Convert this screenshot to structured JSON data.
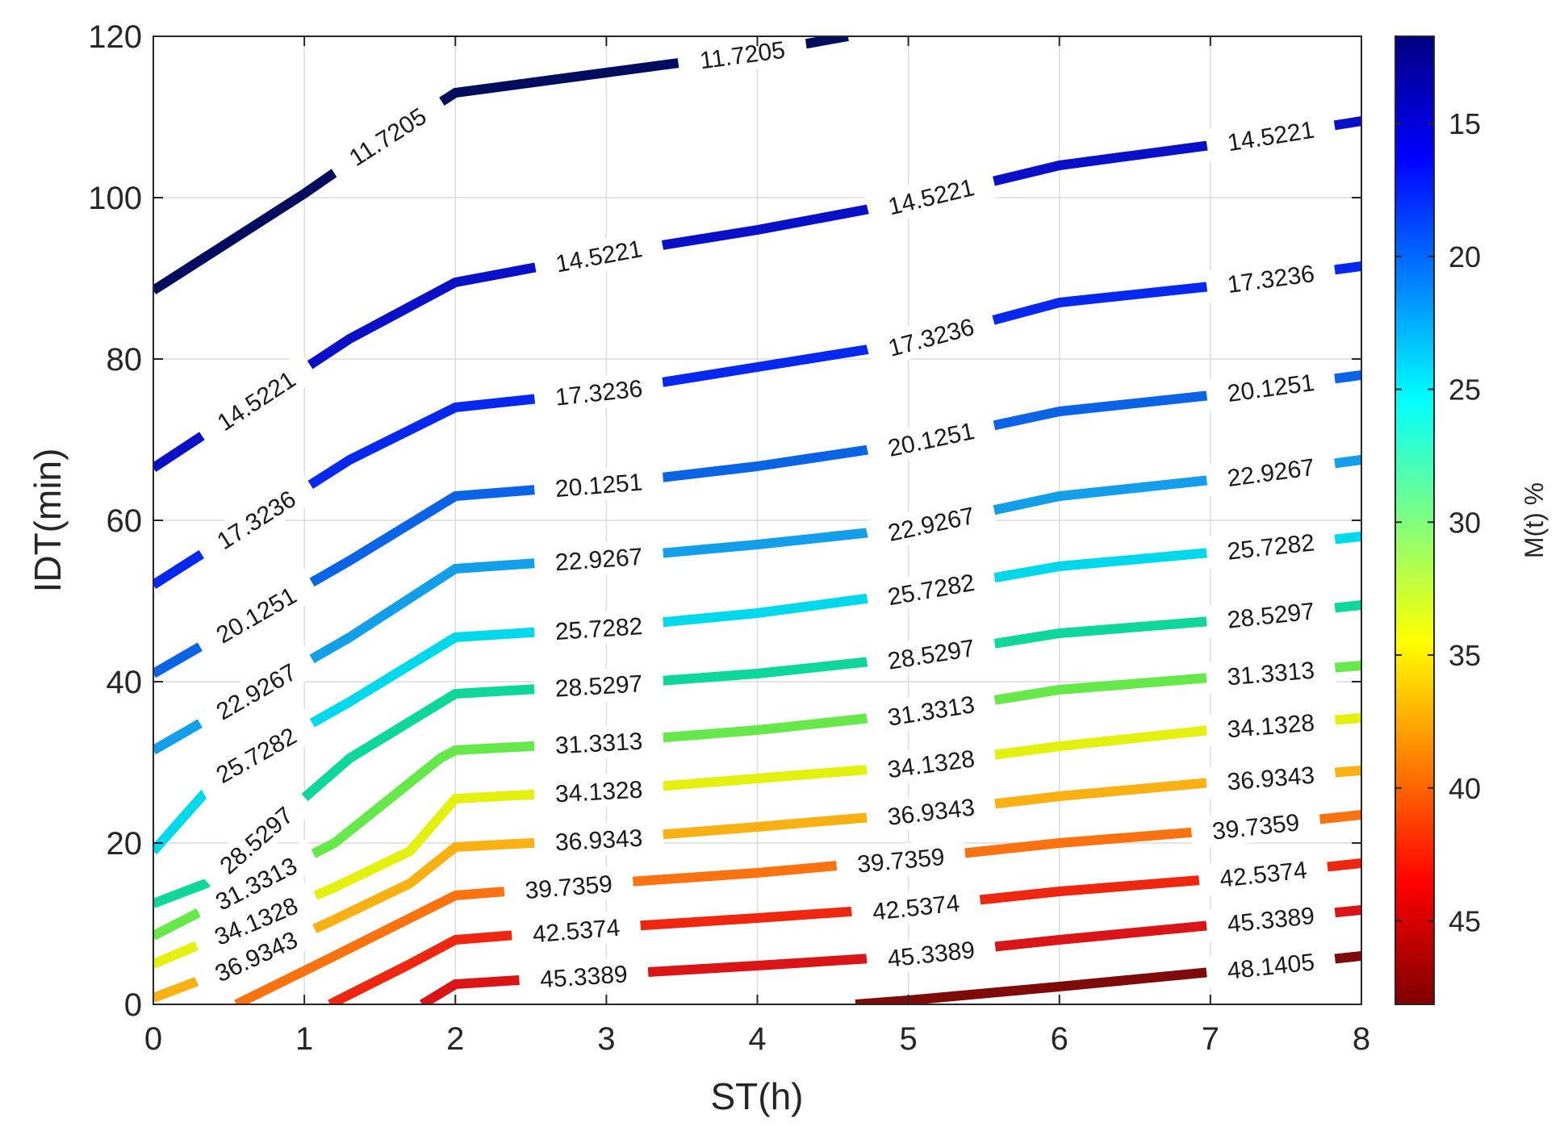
{
  "chart_data": {
    "type": "contour",
    "xlabel": "ST(h)",
    "ylabel": "IDT(min)",
    "xlim": [
      0,
      8
    ],
    "ylim": [
      0,
      120
    ],
    "xticks": [
      "0",
      "1",
      "2",
      "3",
      "4",
      "5",
      "6",
      "7",
      "8"
    ],
    "yticks": [
      "0",
      "20",
      "40",
      "60",
      "80",
      "100",
      "120"
    ],
    "grid": true,
    "colorbar": {
      "label": "M(t) %",
      "range": [
        11.7205,
        48.1405
      ],
      "ticks": [
        "15",
        "20",
        "25",
        "30",
        "35",
        "40",
        "45"
      ],
      "tick_values": [
        15,
        20,
        25,
        30,
        35,
        40,
        45
      ],
      "colormap": "jet",
      "stops": [
        "#00007f",
        "#0000ff",
        "#007fff",
        "#00ffff",
        "#7fff7f",
        "#ffff00",
        "#ff7f00",
        "#ff0000",
        "#7f0000"
      ]
    },
    "levels": [
      {
        "value": 11.7205,
        "label": "11.7205",
        "color": "#000d5e",
        "points": [
          [
            0,
            88.5
          ],
          [
            1,
            100.5
          ],
          [
            1.5,
            107
          ],
          [
            2,
            113
          ],
          [
            3,
            115.5
          ],
          [
            4,
            118
          ],
          [
            4.6,
            120
          ]
        ],
        "labels": [
          {
            "x": 1.55,
            "y": 107.8
          },
          {
            "x": 3.9,
            "y": 117.6
          }
        ]
      },
      {
        "value": 14.5221,
        "label": "14.5221",
        "color": "#0a0fc8",
        "points": [
          [
            0,
            66.5
          ],
          [
            1.3,
            82.5
          ],
          [
            2,
            89.5
          ],
          [
            3,
            93
          ],
          [
            4,
            96
          ],
          [
            5,
            99.5
          ],
          [
            6,
            104
          ],
          [
            7,
            106.5
          ],
          [
            8,
            109.5
          ]
        ],
        "labels": [
          {
            "x": 0.68,
            "y": 75.5
          },
          {
            "x": 2.95,
            "y": 92.7
          },
          {
            "x": 5.15,
            "y": 100.2
          },
          {
            "x": 7.4,
            "y": 107.3
          }
        ]
      },
      {
        "value": 17.3236,
        "label": "17.3236",
        "color": "#0728ef",
        "points": [
          [
            0,
            52
          ],
          [
            1.3,
            67.5
          ],
          [
            2,
            74
          ],
          [
            3,
            76
          ],
          [
            4,
            79
          ],
          [
            5,
            82
          ],
          [
            6,
            87
          ],
          [
            7,
            89
          ],
          [
            8,
            91.5
          ]
        ],
        "labels": [
          {
            "x": 0.68,
            "y": 60.5
          },
          {
            "x": 2.95,
            "y": 75.9
          },
          {
            "x": 5.15,
            "y": 82.8
          },
          {
            "x": 7.4,
            "y": 89.4
          }
        ]
      },
      {
        "value": 20.1251,
        "label": "20.1251",
        "color": "#0b63e6",
        "points": [
          [
            0,
            41
          ],
          [
            1.3,
            55
          ],
          [
            2,
            63
          ],
          [
            3,
            64.5
          ],
          [
            4,
            66.7
          ],
          [
            5,
            69.5
          ],
          [
            6,
            73.5
          ],
          [
            7,
            75.5
          ],
          [
            8,
            78
          ]
        ],
        "labels": [
          {
            "x": 0.68,
            "y": 49.5
          },
          {
            "x": 2.95,
            "y": 64.3
          },
          {
            "x": 5.15,
            "y": 70.2
          },
          {
            "x": 7.4,
            "y": 76
          }
        ]
      },
      {
        "value": 22.9267,
        "label": "22.9267",
        "color": "#129ee8",
        "points": [
          [
            0,
            31.5
          ],
          [
            1.3,
            45.5
          ],
          [
            2,
            54
          ],
          [
            3,
            55.3
          ],
          [
            4,
            57
          ],
          [
            5,
            59
          ],
          [
            6,
            63
          ],
          [
            7,
            65
          ],
          [
            8,
            67.5
          ]
        ],
        "labels": [
          {
            "x": 0.68,
            "y": 38.5
          },
          {
            "x": 2.95,
            "y": 55.2
          },
          {
            "x": 5.15,
            "y": 59.7
          },
          {
            "x": 7.4,
            "y": 65.5
          }
        ]
      },
      {
        "value": 25.7282,
        "label": "25.7282",
        "color": "#00d9ec",
        "points": [
          [
            0,
            19
          ],
          [
            0.45,
            28.5
          ],
          [
            1.3,
            37.5
          ],
          [
            2,
            45.5
          ],
          [
            3,
            46.7
          ],
          [
            4,
            48.5
          ],
          [
            5,
            51
          ],
          [
            6,
            54.3
          ],
          [
            7,
            56
          ],
          [
            8,
            58
          ]
        ],
        "labels": [
          {
            "x": 0.68,
            "y": 32.5
          },
          {
            "x": 2.95,
            "y": 46.5
          },
          {
            "x": 5.15,
            "y": 51.6
          },
          {
            "x": 7.4,
            "y": 56.5
          }
        ]
      },
      {
        "value": 28.5297,
        "label": "28.5297",
        "color": "#0ed79b",
        "points": [
          [
            0,
            12.5
          ],
          [
            0.35,
            15
          ],
          [
            1.3,
            30.5
          ],
          [
            2,
            38.5
          ],
          [
            3,
            39.6
          ],
          [
            4,
            41
          ],
          [
            5,
            43
          ],
          [
            6,
            46
          ],
          [
            7,
            47.5
          ],
          [
            8,
            49.5
          ]
        ],
        "labels": [
          {
            "x": 0.68,
            "y": 23.5
          },
          {
            "x": 2.95,
            "y": 39.4
          },
          {
            "x": 5.15,
            "y": 43.6
          },
          {
            "x": 7.4,
            "y": 47.9
          }
        ]
      },
      {
        "value": 31.3313,
        "label": "31.3313",
        "color": "#66e84a",
        "points": [
          [
            0,
            8.5
          ],
          [
            1.2,
            20
          ],
          [
            1.9,
            30.5
          ],
          [
            2,
            31.5
          ],
          [
            3,
            32.5
          ],
          [
            4,
            34
          ],
          [
            5,
            36
          ],
          [
            6,
            39
          ],
          [
            7,
            40.5
          ],
          [
            8,
            42
          ]
        ],
        "labels": [
          {
            "x": 0.68,
            "y": 16.5
          },
          {
            "x": 2.95,
            "y": 32.4
          },
          {
            "x": 5.15,
            "y": 36.6
          },
          {
            "x": 7.4,
            "y": 40.8
          }
        ]
      },
      {
        "value": 34.1328,
        "label": "34.1328",
        "color": "#e4f00d",
        "points": [
          [
            0,
            5
          ],
          [
            1.2,
            14.5
          ],
          [
            1.7,
            19
          ],
          [
            2,
            25.5
          ],
          [
            3,
            26.5
          ],
          [
            4,
            28
          ],
          [
            5,
            29.5
          ],
          [
            6,
            32
          ],
          [
            7,
            34
          ],
          [
            8,
            35.5
          ]
        ],
        "labels": [
          {
            "x": 0.68,
            "y": 11
          },
          {
            "x": 2.95,
            "y": 26.4
          },
          {
            "x": 5.15,
            "y": 30.1
          },
          {
            "x": 7.4,
            "y": 34.3
          }
        ]
      },
      {
        "value": 36.9343,
        "label": "36.9343",
        "color": "#f9b013",
        "points": [
          [
            0,
            0.8
          ],
          [
            0.45,
            4
          ],
          [
            1.2,
            10.5
          ],
          [
            1.7,
            15
          ],
          [
            2,
            19.5
          ],
          [
            3,
            20.5
          ],
          [
            4,
            22
          ],
          [
            5,
            23.6
          ],
          [
            6,
            25.8
          ],
          [
            7,
            27.5
          ],
          [
            8,
            29
          ]
        ],
        "labels": [
          {
            "x": 0.68,
            "y": 7
          },
          {
            "x": 2.95,
            "y": 20.4
          },
          {
            "x": 5.15,
            "y": 24.1
          },
          {
            "x": 7.4,
            "y": 27.9
          }
        ]
      },
      {
        "value": 39.7359,
        "label": "39.7359",
        "color": "#fa7310",
        "points": [
          [
            0.55,
            0
          ],
          [
            1.2,
            6
          ],
          [
            2,
            13.5
          ],
          [
            3,
            15
          ],
          [
            4,
            16.3
          ],
          [
            5,
            18
          ],
          [
            6,
            20
          ],
          [
            7,
            21.5
          ],
          [
            8,
            23.5
          ]
        ],
        "labels": [
          {
            "x": 2.75,
            "y": 14.5
          },
          {
            "x": 4.95,
            "y": 17.8
          },
          {
            "x": 7.3,
            "y": 22
          }
        ]
      },
      {
        "value": 42.5374,
        "label": "42.5374",
        "color": "#ef2711",
        "points": [
          [
            1.17,
            0
          ],
          [
            1.7,
            5
          ],
          [
            2,
            8
          ],
          [
            3,
            9.5
          ],
          [
            4,
            10.7
          ],
          [
            5,
            12
          ],
          [
            6,
            14
          ],
          [
            7,
            15.5
          ],
          [
            8,
            17.5
          ]
        ],
        "labels": [
          {
            "x": 2.8,
            "y": 9.2
          },
          {
            "x": 5.05,
            "y": 12.2
          },
          {
            "x": 7.35,
            "y": 16
          }
        ]
      },
      {
        "value": 45.3389,
        "label": "45.3389",
        "color": "#d91518",
        "points": [
          [
            1.78,
            0
          ],
          [
            2,
            2.5
          ],
          [
            3,
            3.7
          ],
          [
            4,
            4.8
          ],
          [
            5,
            6
          ],
          [
            6,
            8
          ],
          [
            7,
            9.8
          ],
          [
            8,
            11.7
          ]
        ],
        "labels": [
          {
            "x": 2.85,
            "y": 3.5
          },
          {
            "x": 5.15,
            "y": 6.5
          },
          {
            "x": 7.4,
            "y": 10.3
          }
        ]
      },
      {
        "value": 48.1405,
        "label": "48.1405",
        "color": "#7f0a0a",
        "points": [
          [
            4.65,
            0
          ],
          [
            5,
            0.5
          ],
          [
            6,
            2.2
          ],
          [
            7,
            4
          ],
          [
            8,
            6
          ]
        ],
        "labels": [
          {
            "x": 7.4,
            "y": 4.9
          }
        ]
      }
    ]
  }
}
